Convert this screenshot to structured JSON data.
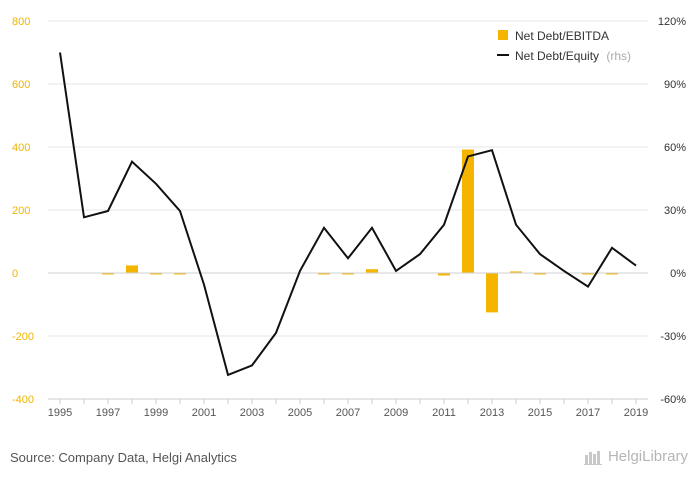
{
  "chart_data": {
    "type": "bar+line",
    "x": [
      1995,
      1996,
      1997,
      1998,
      1999,
      2000,
      2001,
      2002,
      2003,
      2004,
      2005,
      2006,
      2007,
      2008,
      2009,
      2010,
      2011,
      2012,
      2013,
      2014,
      2015,
      2016,
      2017,
      2018,
      2019
    ],
    "x_tick_labels": [
      "1995",
      "1997",
      "1999",
      "2001",
      "2003",
      "2005",
      "2007",
      "2009",
      "2011",
      "2013",
      "2015",
      "2017",
      "2019"
    ],
    "series": [
      {
        "name": "Net Debt/EBITDA",
        "type": "bar",
        "axis": "left",
        "color": "#f5b400",
        "values": [
          null,
          null,
          -2,
          24,
          -3,
          -2,
          null,
          null,
          null,
          null,
          null,
          -2,
          -2,
          12,
          null,
          null,
          -8,
          392,
          -125,
          5,
          -2,
          null,
          -3,
          -2,
          null
        ]
      },
      {
        "name": "Net Debt/Equity",
        "axis_note": "(rhs)",
        "type": "line",
        "axis": "right",
        "color": "#111111",
        "values": [
          105,
          26.5,
          29.5,
          53,
          42.5,
          29.5,
          -5.5,
          -48.5,
          -44,
          -28.5,
          1,
          21.5,
          7,
          21.5,
          1,
          9,
          23,
          55.5,
          58.5,
          23,
          9,
          1,
          -6.5,
          12,
          3.5
        ]
      }
    ],
    "y_left": {
      "ylim": [
        -400,
        800
      ],
      "ticks": [
        "-400",
        "-200",
        "0",
        "200",
        "400",
        "600",
        "800"
      ],
      "values": [
        -400,
        -200,
        0,
        200,
        400,
        600,
        800
      ]
    },
    "y_right": {
      "ylim": [
        -60,
        120
      ],
      "ticks": [
        "-60%",
        "-30%",
        "0%",
        "30%",
        "60%",
        "90%",
        "120%"
      ],
      "values": [
        -60,
        -30,
        0,
        30,
        60,
        90,
        120
      ]
    },
    "grid": true,
    "legend_position": "top-right"
  },
  "footer": {
    "source": "Source: Company Data, Helgi Analytics",
    "brand": "HelgiLibrary"
  }
}
